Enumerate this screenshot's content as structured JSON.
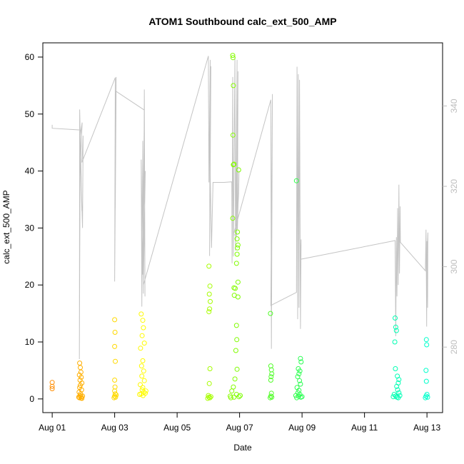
{
  "chart_data": {
    "type": "scatter",
    "title": "ATOM1 Southbound calc_ext_500_AMP",
    "xlabel": "Date",
    "ylabel": "calc_ext_500_AMP",
    "x_tick_labels": [
      "Aug 01",
      "Aug 03",
      "Aug 05",
      "Aug 07",
      "Aug 09",
      "Aug 11",
      "Aug 13"
    ],
    "x_tick_days": [
      1,
      3,
      5,
      7,
      9,
      11,
      13
    ],
    "xlim_days": [
      0.7,
      13.5
    ],
    "ylim": [
      -2.4,
      62.5
    ],
    "y_ticks": [
      0,
      10,
      20,
      30,
      40,
      50,
      60
    ],
    "y2_ticks": [
      280,
      300,
      320,
      340
    ],
    "y2lim": [
      263.7,
      355.7
    ],
    "grid": false,
    "legend": "none",
    "colors": {
      "line": "#c4c4c4",
      "axis": "#000000",
      "right_axis": "#bdbdbd",
      "gradient": [
        "#ff8c00",
        "#ffff00",
        "#7cfc00",
        "#00ff7f",
        "#00ffcc"
      ]
    },
    "scatter_points": [
      [
        1.0,
        2.9
      ],
      [
        1.0,
        2.2
      ],
      [
        1.0,
        1.8
      ],
      [
        1.88,
        6.3
      ],
      [
        1.9,
        5.5
      ],
      [
        1.92,
        4.7
      ],
      [
        1.87,
        4.2
      ],
      [
        1.93,
        3.8
      ],
      [
        1.89,
        3.3
      ],
      [
        1.95,
        2.8
      ],
      [
        1.9,
        2.4
      ],
      [
        1.88,
        2.0
      ],
      [
        1.94,
        1.6
      ],
      [
        1.86,
        1.2
      ],
      [
        1.91,
        0.9
      ],
      [
        1.89,
        0.6
      ],
      [
        1.93,
        0.4
      ],
      [
        1.87,
        0.2
      ],
      [
        1.95,
        0.1
      ],
      [
        1.85,
        0.3
      ],
      [
        1.97,
        0.5
      ],
      [
        1.92,
        0.15
      ],
      [
        3.0,
        13.9
      ],
      [
        3.01,
        11.7
      ],
      [
        3.0,
        9.2
      ],
      [
        3.02,
        6.6
      ],
      [
        3.0,
        3.3
      ],
      [
        3.01,
        2.1
      ],
      [
        3.0,
        1.4
      ],
      [
        3.02,
        0.9
      ],
      [
        3.0,
        0.5
      ],
      [
        3.03,
        0.3
      ],
      [
        2.98,
        0.2
      ],
      [
        3.05,
        0.7
      ],
      [
        3.85,
        14.9
      ],
      [
        3.9,
        13.8
      ],
      [
        3.92,
        12.5
      ],
      [
        3.88,
        11.1
      ],
      [
        3.95,
        9.8
      ],
      [
        3.83,
        8.9
      ],
      [
        3.9,
        6.7
      ],
      [
        3.86,
        5.8
      ],
      [
        3.93,
        4.9
      ],
      [
        3.87,
        4.0
      ],
      [
        3.95,
        3.2
      ],
      [
        3.82,
        2.5
      ],
      [
        3.9,
        2.0
      ],
      [
        3.88,
        1.6
      ],
      [
        3.93,
        1.2
      ],
      [
        3.85,
        0.9
      ],
      [
        3.98,
        1.0
      ],
      [
        3.8,
        0.8
      ],
      [
        3.91,
        0.6
      ],
      [
        4.0,
        1.4
      ],
      [
        6.02,
        23.3
      ],
      [
        6.05,
        19.8
      ],
      [
        6.03,
        18.4
      ],
      [
        6.06,
        17.1
      ],
      [
        6.04,
        15.8
      ],
      [
        6.02,
        15.3
      ],
      [
        6.05,
        5.3
      ],
      [
        6.03,
        2.7
      ],
      [
        6.0,
        0.6
      ],
      [
        6.02,
        0.3
      ],
      [
        6.05,
        0.2
      ],
      [
        6.08,
        0.4
      ],
      [
        5.98,
        0.1
      ],
      [
        6.78,
        60.3
      ],
      [
        6.79,
        59.9
      ],
      [
        6.8,
        55.0
      ],
      [
        6.79,
        46.3
      ],
      [
        6.8,
        41.1
      ],
      [
        6.82,
        41.2
      ],
      [
        6.97,
        40.2
      ],
      [
        6.78,
        31.7
      ],
      [
        6.93,
        29.3
      ],
      [
        6.92,
        28.1
      ],
      [
        6.95,
        27.0
      ],
      [
        6.93,
        26.5
      ],
      [
        6.92,
        25.4
      ],
      [
        6.9,
        23.8
      ],
      [
        6.95,
        20.5
      ],
      [
        6.82,
        19.5
      ],
      [
        6.86,
        19.4
      ],
      [
        6.83,
        18.2
      ],
      [
        6.95,
        17.9
      ],
      [
        6.9,
        12.9
      ],
      [
        6.91,
        10.4
      ],
      [
        6.88,
        8.5
      ],
      [
        6.92,
        5.2
      ],
      [
        6.85,
        3.5
      ],
      [
        6.8,
        2.1
      ],
      [
        6.75,
        1.4
      ],
      [
        6.9,
        0.8
      ],
      [
        6.7,
        0.5
      ],
      [
        6.82,
        0.3
      ],
      [
        6.98,
        0.4
      ],
      [
        7.02,
        0.6
      ],
      [
        6.72,
        0.2
      ],
      [
        8.0,
        5.8
      ],
      [
        8.02,
        5.1
      ],
      [
        8.03,
        4.4
      ],
      [
        8.01,
        3.9
      ],
      [
        8.0,
        3.3
      ],
      [
        7.99,
        15.0
      ],
      [
        8.02,
        1.0
      ],
      [
        8.0,
        0.5
      ],
      [
        8.03,
        0.3
      ],
      [
        7.98,
        0.2
      ],
      [
        8.82,
        38.3
      ],
      [
        8.95,
        7.1
      ],
      [
        8.97,
        6.5
      ],
      [
        8.88,
        5.3
      ],
      [
        8.93,
        4.9
      ],
      [
        8.9,
        4.4
      ],
      [
        8.86,
        3.9
      ],
      [
        8.92,
        3.2
      ],
      [
        8.95,
        2.6
      ],
      [
        8.84,
        2.0
      ],
      [
        8.9,
        1.5
      ],
      [
        8.87,
        1.1
      ],
      [
        8.93,
        0.8
      ],
      [
        8.89,
        0.5
      ],
      [
        8.96,
        0.3
      ],
      [
        8.83,
        0.2
      ],
      [
        9.0,
        0.4
      ],
      [
        8.8,
        0.6
      ],
      [
        11.98,
        14.2
      ],
      [
        12.0,
        12.6
      ],
      [
        12.02,
        12.0
      ],
      [
        11.97,
        10.0
      ],
      [
        11.99,
        5.3
      ],
      [
        12.05,
        4.0
      ],
      [
        12.1,
        3.4
      ],
      [
        12.08,
        2.8
      ],
      [
        12.03,
        2.2
      ],
      [
        12.06,
        1.6
      ],
      [
        12.1,
        1.1
      ],
      [
        11.95,
        0.8
      ],
      [
        12.0,
        0.5
      ],
      [
        12.04,
        0.3
      ],
      [
        12.08,
        0.2
      ],
      [
        11.92,
        0.4
      ],
      [
        12.13,
        0.6
      ],
      [
        12.98,
        10.4
      ],
      [
        12.99,
        9.5
      ],
      [
        12.97,
        5.0
      ],
      [
        12.98,
        3.1
      ],
      [
        13.0,
        0.8
      ],
      [
        12.97,
        0.5
      ],
      [
        13.02,
        0.3
      ],
      [
        12.95,
        0.2
      ]
    ],
    "gray_line_points": [
      [
        1.0,
        48.1
      ],
      [
        1.0,
        47.5
      ],
      [
        1.9,
        47.2
      ],
      [
        1.88,
        22.0
      ],
      [
        1.87,
        7.0
      ],
      [
        1.88,
        50.8
      ],
      [
        1.95,
        33.0
      ],
      [
        1.89,
        46.0
      ],
      [
        1.96,
        48.5
      ],
      [
        1.91,
        42.0
      ],
      [
        1.97,
        30.0
      ],
      [
        1.99,
        46.2
      ],
      [
        1.95,
        41.5
      ],
      [
        3.02,
        56.4
      ],
      [
        3.0,
        20.6
      ],
      [
        3.05,
        56.5
      ],
      [
        3.02,
        33.5
      ],
      [
        3.04,
        54.0
      ],
      [
        3.95,
        50.7
      ],
      [
        3.9,
        21.8
      ],
      [
        3.85,
        42.0
      ],
      [
        3.87,
        16.2
      ],
      [
        3.9,
        45.3
      ],
      [
        3.92,
        18.5
      ],
      [
        3.95,
        54.3
      ],
      [
        3.97,
        18.0
      ],
      [
        3.95,
        51.2
      ],
      [
        3.93,
        33.5
      ],
      [
        3.98,
        40.0
      ],
      [
        3.92,
        20.0
      ],
      [
        6.0,
        60.2
      ],
      [
        6.02,
        38.0
      ],
      [
        6.06,
        59.5
      ],
      [
        6.04,
        25.1
      ],
      [
        6.08,
        58.4
      ],
      [
        6.06,
        39.3
      ],
      [
        6.1,
        26.5
      ],
      [
        6.15,
        38.0
      ],
      [
        6.5,
        38.0
      ],
      [
        6.75,
        38.1
      ],
      [
        6.76,
        23.8
      ],
      [
        6.78,
        56.5
      ],
      [
        6.8,
        25.0
      ],
      [
        6.85,
        60.0
      ],
      [
        6.87,
        26.0
      ],
      [
        6.92,
        59.5
      ],
      [
        6.9,
        28.5
      ],
      [
        6.95,
        57.5
      ],
      [
        6.93,
        29.8
      ],
      [
        6.98,
        40.0
      ],
      [
        6.97,
        36.0
      ],
      [
        6.9,
        28.8
      ],
      [
        6.8,
        28.8
      ],
      [
        8.0,
        52.5
      ],
      [
        8.02,
        8.8
      ],
      [
        8.05,
        53.5
      ],
      [
        8.0,
        16.4
      ],
      [
        8.82,
        18.7
      ],
      [
        8.84,
        58.3
      ],
      [
        8.86,
        14.0
      ],
      [
        8.88,
        57.0
      ],
      [
        8.9,
        16.0
      ],
      [
        8.92,
        56.0
      ],
      [
        8.95,
        12.3
      ],
      [
        8.97,
        28.0
      ],
      [
        8.95,
        24.5
      ],
      [
        11.98,
        27.8
      ],
      [
        12.0,
        11.0
      ],
      [
        12.02,
        28.4
      ],
      [
        12.04,
        18.0
      ],
      [
        12.06,
        33.5
      ],
      [
        12.08,
        20.0
      ],
      [
        12.1,
        37.6
      ],
      [
        12.12,
        22.0
      ],
      [
        12.14,
        33.8
      ],
      [
        12.15,
        27.5
      ],
      [
        12.95,
        22.5
      ],
      [
        12.97,
        29.7
      ],
      [
        12.99,
        12.7
      ],
      [
        13.0,
        27.7
      ],
      [
        13.02,
        16.0
      ],
      [
        13.03,
        29.2
      ],
      [
        12.98,
        22.5
      ]
    ]
  }
}
